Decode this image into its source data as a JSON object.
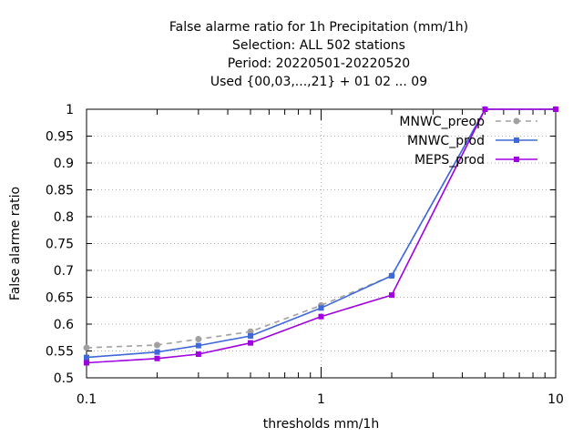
{
  "chart_data": {
    "type": "line",
    "title_lines": [
      "False alarme ratio  for 1h Precipitation (mm/1h)",
      "Selection: ALL    502 stations",
      "Period: 20220501-20220520",
      "Used {00,03,...,21} + 01 02 ... 09"
    ],
    "xlabel": "thresholds mm/1h",
    "ylabel": "False alarme ratio",
    "xscale": "log",
    "xlim": [
      0.1,
      10
    ],
    "ylim": [
      0.5,
      1.0
    ],
    "x_ticks": [
      0.1,
      1,
      10
    ],
    "x_tick_labels": [
      "0.1",
      "1",
      "10"
    ],
    "y_ticks": [
      0.5,
      0.55,
      0.6,
      0.65,
      0.7,
      0.75,
      0.8,
      0.85,
      0.9,
      0.95,
      1.0
    ],
    "y_tick_labels": [
      "0.5",
      "0.55",
      "0.6",
      "0.65",
      "0.7",
      "0.75",
      "0.8",
      "0.85",
      "0.9",
      "0.95",
      "1"
    ],
    "grid": true,
    "legend_position": "top-right",
    "x": [
      0.1,
      0.2,
      0.3,
      0.5,
      1,
      2,
      5,
      10
    ],
    "series": [
      {
        "name": "MNWC_preop",
        "color": "#a0a0a0",
        "dashed": true,
        "marker": "circle",
        "values": [
          0.556,
          0.561,
          0.572,
          0.586,
          0.635,
          0.69,
          1.0,
          1.0
        ]
      },
      {
        "name": "MNWC_prod",
        "color": "#3f68d8",
        "dashed": false,
        "marker": "square",
        "values": [
          0.538,
          0.548,
          0.56,
          0.578,
          0.63,
          0.69,
          1.0,
          1.0
        ]
      },
      {
        "name": "MEPS_prod",
        "color": "#a000e0",
        "dashed": false,
        "marker": "square",
        "values": [
          0.528,
          0.536,
          0.544,
          0.565,
          0.614,
          0.654,
          1.0,
          1.0
        ]
      }
    ]
  }
}
